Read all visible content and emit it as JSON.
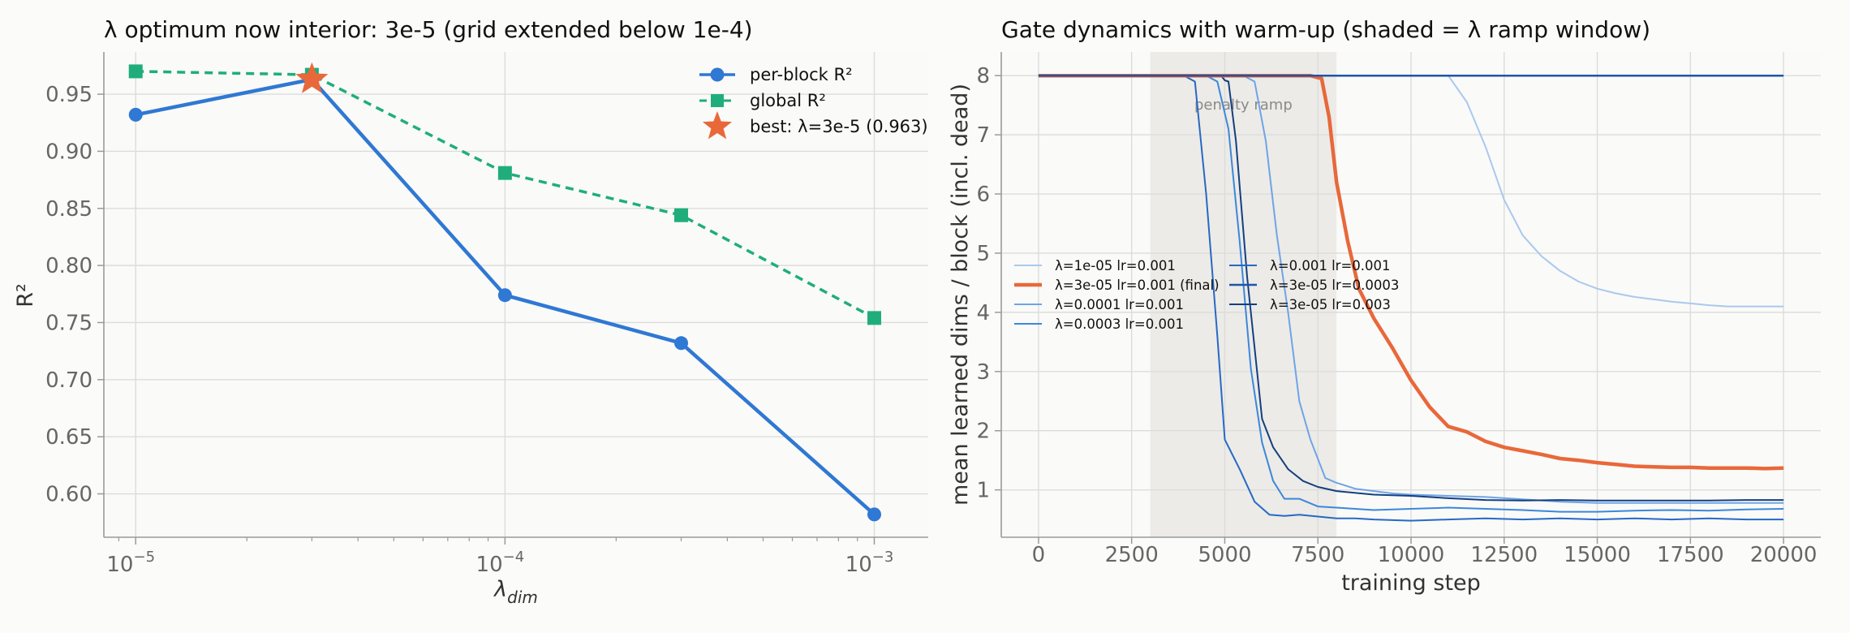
{
  "chart_data": [
    {
      "type": "line",
      "title": "λ optimum now interior: 3e-5 (grid extended below 1e-4)",
      "xlabel": "λ",
      "xlabel_sub": "dim",
      "ylabel": "R²",
      "x_scale": "log",
      "xlim": [
        8.2e-06,
        0.0014
      ],
      "ylim": [
        0.562,
        0.987
      ],
      "yticks": [
        "0.60",
        "0.65",
        "0.70",
        "0.75",
        "0.80",
        "0.85",
        "0.90",
        "0.95"
      ],
      "ytick_values": [
        0.6,
        0.65,
        0.7,
        0.75,
        0.8,
        0.85,
        0.9,
        0.95
      ],
      "xticks": [
        {
          "value": 1e-05,
          "base": "10",
          "exp": "−5"
        },
        {
          "value": 0.0001,
          "base": "10",
          "exp": "−4"
        },
        {
          "value": 0.001,
          "base": "10",
          "exp": "−3"
        }
      ],
      "grid": true,
      "legend_position": "upper right",
      "x": [
        1e-05,
        3e-05,
        0.0001,
        0.0003,
        0.001
      ],
      "series": [
        {
          "name": "per-block R²",
          "color": "#2f78d3",
          "marker": "circle",
          "style": "solid",
          "values": [
            0.932,
            0.963,
            0.774,
            0.732,
            0.582
          ]
        },
        {
          "name": "global R²",
          "color": "#1fae7b",
          "marker": "square",
          "style": "dashed",
          "values": [
            0.97,
            0.967,
            0.881,
            0.844,
            0.754
          ]
        }
      ],
      "best": {
        "label": "best: λ=3e-5 (0.963)",
        "x": 3e-05,
        "y": 0.963,
        "color": "#e8683a",
        "marker": "star"
      }
    },
    {
      "type": "line",
      "title": "Gate dynamics with warm-up (shaded = λ ramp window)",
      "xlabel": "training step",
      "ylabel": "mean learned dims / block (incl. dead)",
      "xlim": [
        -1000,
        21000
      ],
      "ylim": [
        0.2,
        8.4
      ],
      "xticks": [
        0,
        2500,
        5000,
        7500,
        10000,
        12500,
        15000,
        17500,
        20000
      ],
      "yticks": [
        1,
        2,
        3,
        4,
        5,
        6,
        7,
        8
      ],
      "grid": true,
      "legend_position": "center left",
      "shaded_region": {
        "x_start": 3000,
        "x_end": 8000,
        "label": "penalty ramp"
      },
      "series": [
        {
          "name": "λ=1e-05 lr=0.001",
          "color": "#a9c9ee",
          "width": 2,
          "x": [
            0,
            9000,
            10000,
            10500,
            11000,
            11500,
            12000,
            12500,
            13000,
            13500,
            14000,
            14500,
            15000,
            15500,
            16000,
            16500,
            17000,
            17500,
            18000,
            18500,
            19000,
            19500,
            20000
          ],
          "y": [
            8.0,
            8.0,
            8.0,
            8.0,
            8.0,
            7.55,
            6.8,
            5.9,
            5.3,
            4.95,
            4.7,
            4.52,
            4.4,
            4.32,
            4.26,
            4.22,
            4.18,
            4.15,
            4.12,
            4.1,
            4.1,
            4.1,
            4.1
          ]
        },
        {
          "name": "λ=3e-05 lr=0.001 (final)",
          "color": "#e8683a",
          "width": 4.5,
          "x": [
            0,
            6500,
            7000,
            7300,
            7600,
            7800,
            8000,
            8300,
            8600,
            9000,
            9500,
            10000,
            10500,
            11000,
            11500,
            12000,
            12500,
            13000,
            13500,
            14000,
            14500,
            15000,
            15500,
            16000,
            16500,
            17000,
            17500,
            18000,
            18500,
            19000,
            19500,
            20000
          ],
          "y": [
            8.0,
            8.0,
            8.0,
            8.0,
            7.95,
            7.3,
            6.2,
            5.2,
            4.4,
            3.9,
            3.4,
            2.85,
            2.4,
            2.07,
            1.98,
            1.82,
            1.72,
            1.66,
            1.6,
            1.53,
            1.5,
            1.46,
            1.43,
            1.4,
            1.39,
            1.38,
            1.38,
            1.37,
            1.37,
            1.37,
            1.36,
            1.37
          ]
        },
        {
          "name": "λ=0.0001 lr=0.001",
          "color": "#6fa4e6",
          "width": 2,
          "x": [
            0,
            5500,
            5800,
            6100,
            6400,
            6700,
            7000,
            7300,
            7700,
            8000,
            8500,
            9000,
            9500,
            10000,
            11000,
            12000,
            13000,
            14000,
            15000,
            16000,
            17000,
            18000,
            19000,
            20000
          ],
          "y": [
            8.0,
            8.0,
            7.9,
            6.9,
            5.3,
            4.0,
            2.5,
            1.85,
            1.2,
            1.12,
            1.02,
            0.98,
            0.94,
            0.92,
            0.9,
            0.88,
            0.84,
            0.8,
            0.78,
            0.78,
            0.78,
            0.78,
            0.78,
            0.78
          ]
        },
        {
          "name": "λ=0.0003 lr=0.001",
          "color": "#3c87dc",
          "width": 2,
          "x": [
            0,
            4500,
            4800,
            5100,
            5400,
            5700,
            6000,
            6300,
            6600,
            7000,
            7500,
            8000,
            8500,
            9000,
            10000,
            11000,
            12000,
            13000,
            14000,
            15000,
            16000,
            17000,
            18000,
            19000,
            20000
          ],
          "y": [
            8.0,
            8.0,
            7.9,
            7.1,
            5.2,
            3.05,
            1.8,
            1.15,
            0.85,
            0.85,
            0.72,
            0.7,
            0.68,
            0.66,
            0.68,
            0.7,
            0.68,
            0.66,
            0.63,
            0.63,
            0.65,
            0.66,
            0.65,
            0.67,
            0.68
          ]
        },
        {
          "name": "λ=0.001 lr=0.001",
          "color": "#2769c4",
          "width": 2,
          "x": [
            0,
            3900,
            4200,
            4500,
            4800,
            5000,
            5400,
            5800,
            6200,
            6600,
            7000,
            7500,
            8000,
            8500,
            9000,
            10000,
            11000,
            12000,
            13000,
            14000,
            15000,
            16000,
            17000,
            18000,
            19000,
            20000
          ],
          "y": [
            8.0,
            8.0,
            7.9,
            6.0,
            3.6,
            1.85,
            1.35,
            0.8,
            0.58,
            0.56,
            0.58,
            0.55,
            0.52,
            0.52,
            0.5,
            0.48,
            0.5,
            0.52,
            0.5,
            0.52,
            0.5,
            0.52,
            0.5,
            0.52,
            0.5,
            0.5
          ]
        },
        {
          "name": "λ=3e-05 lr=0.0003",
          "color": "#1f55a8",
          "width": 2.5,
          "x": [
            0,
            20000
          ],
          "y": [
            8.0,
            8.0
          ]
        },
        {
          "name": "λ=3e-05 lr=0.003",
          "color": "#143f80",
          "width": 2,
          "x": [
            0,
            4900,
            5000,
            5100,
            5300,
            5600,
            6000,
            6300,
            6700,
            7100,
            7500,
            8000,
            9000,
            10000,
            11000,
            12000,
            13000,
            14000,
            15000,
            16000,
            17000,
            18000,
            19000,
            20000
          ],
          "y": [
            8.0,
            8.0,
            7.92,
            7.9,
            6.9,
            4.6,
            2.2,
            1.72,
            1.35,
            1.15,
            1.05,
            0.98,
            0.92,
            0.9,
            0.86,
            0.83,
            0.82,
            0.83,
            0.82,
            0.82,
            0.82,
            0.82,
            0.83,
            0.83
          ]
        }
      ]
    }
  ]
}
